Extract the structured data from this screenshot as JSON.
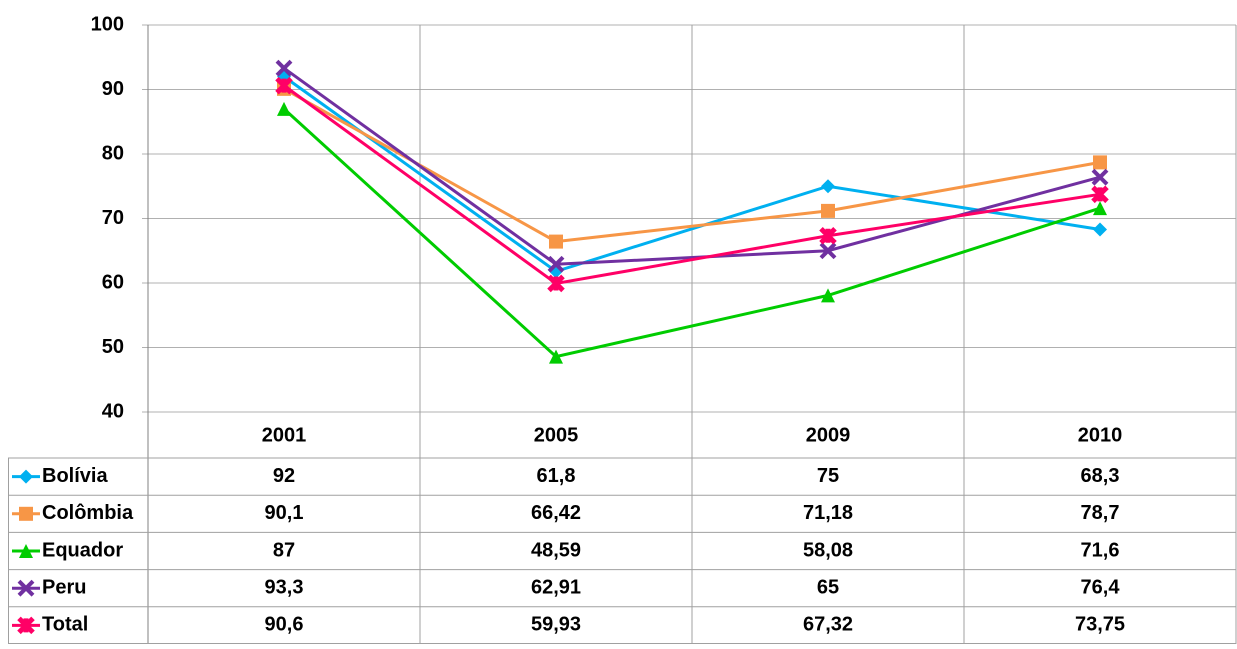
{
  "chart_data": {
    "type": "line",
    "categories": [
      "2001",
      "2005",
      "2009",
      "2010"
    ],
    "series": [
      {
        "name": "Bolívia",
        "color": "#00b0f0",
        "marker": "diamond",
        "values": [
          92,
          61.8,
          75,
          68.3
        ],
        "value_labels": [
          "92",
          "61,8",
          "75",
          "68,3"
        ]
      },
      {
        "name": "Colômbia",
        "color": "#f79646",
        "marker": "square",
        "values": [
          90.1,
          66.42,
          71.18,
          78.7
        ],
        "value_labels": [
          "90,1",
          "66,42",
          "71,18",
          "78,7"
        ]
      },
      {
        "name": "Equador",
        "color": "#00cc00",
        "marker": "triangle",
        "values": [
          87,
          48.59,
          58.08,
          71.6
        ],
        "value_labels": [
          "87",
          "48,59",
          "58,08",
          "71,6"
        ]
      },
      {
        "name": "Peru",
        "color": "#7030a0",
        "marker": "x",
        "values": [
          93.3,
          62.91,
          65,
          76.4
        ],
        "value_labels": [
          "93,3",
          "62,91",
          "65",
          "76,4"
        ]
      },
      {
        "name": "Total",
        "color": "#ff0066",
        "marker": "star",
        "values": [
          90.6,
          59.93,
          67.32,
          73.75
        ],
        "value_labels": [
          "90,6",
          "59,93",
          "67,32",
          "73,75"
        ]
      }
    ],
    "ylim": [
      40,
      100
    ],
    "yticks": [
      40,
      50,
      60,
      70,
      80,
      90,
      100
    ],
    "grid": true
  }
}
